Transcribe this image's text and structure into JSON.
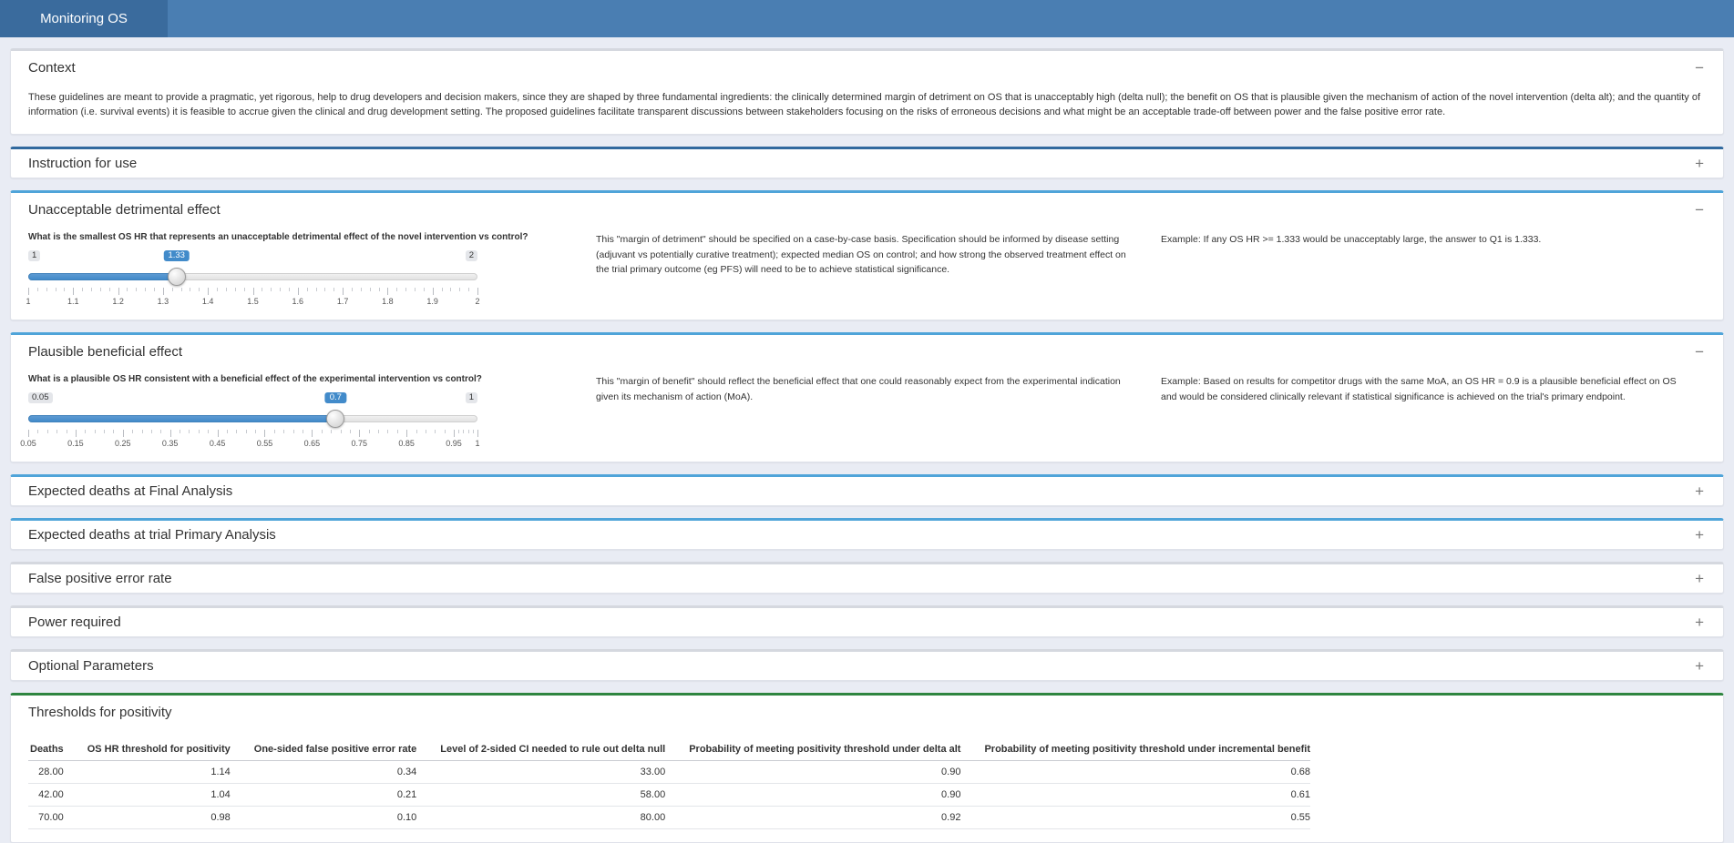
{
  "navbar": {
    "title": "Monitoring OS"
  },
  "colors": {
    "accent_blue": "#428bca",
    "navbar_bg": "#4a7eb2",
    "navbar_active_bg": "#3a6b9d",
    "page_bg": "#e9ecf4",
    "border_gray": "#d5d8df",
    "border_blue_dark": "#31699e",
    "border_blue_light": "#4fa4d9",
    "border_green": "#2e8540"
  },
  "panels": {
    "context": {
      "title": "Context",
      "toggle": "−",
      "body": "These guidelines are meant to provide a pragmatic, yet rigorous, help to drug developers and decision makers, since they are shaped by three fundamental ingredients: the clinically determined margin of detriment on OS that is unacceptably high (delta null); the benefit on OS that is plausible given the mechanism of action of the novel intervention (delta alt); and the quantity of information (i.e. survival events) it is feasible to accrue given the clinical and drug development setting. The proposed guidelines facilitate transparent discussions between stakeholders focusing on the risks of erroneous decisions and what might be an acceptable trade-off between power and the false positive error rate."
    },
    "instruction": {
      "title": "Instruction for use",
      "toggle": "+"
    },
    "detrimental": {
      "title": "Unacceptable detrimental effect",
      "toggle": "−",
      "question": "What is the smallest OS HR that represents an unacceptable detrimental effect of the novel intervention vs control?",
      "slider": {
        "min": 1,
        "max": 2,
        "value": 1.33,
        "min_label": "1",
        "max_label": "2",
        "value_label": "1.33",
        "ticks": [
          "1",
          "1.1",
          "1.2",
          "1.3",
          "1.4",
          "1.5",
          "1.6",
          "1.7",
          "1.8",
          "1.9",
          "2"
        ]
      },
      "note": "This \"margin of detriment\" should be specified on a case-by-case basis. Specification should be informed by disease setting (adjuvant vs potentially curative treatment); expected median OS on control; and how strong the observed treatment effect on the trial primary outcome (eg PFS) will need to be to achieve statistical significance.",
      "example": "Example: If any OS HR >= 1.333 would be unacceptably large, the answer to Q1 is 1.333."
    },
    "beneficial": {
      "title": "Plausible beneficial effect",
      "toggle": "−",
      "question": "What is a plausible OS HR consistent with a beneficial effect of the experimental intervention vs control?",
      "slider": {
        "min": 0.05,
        "max": 1,
        "value": 0.7,
        "min_label": "0.05",
        "max_label": "1",
        "value_label": "0.7",
        "ticks": [
          "0.05",
          "0.15",
          "0.25",
          "0.35",
          "0.45",
          "0.55",
          "0.65",
          "0.75",
          "0.85",
          "0.95",
          "1"
        ]
      },
      "note": "This \"margin of benefit\" should reflect the beneficial effect that one could reasonably expect from the experimental indication given its mechanism of action (MoA).",
      "example": "Example: Based on results for competitor drugs with the same MoA, an OS HR = 0.9 is a plausible beneficial effect on OS and would be considered clinically relevant if statistical significance is achieved on the trial's primary endpoint."
    },
    "deaths_final": {
      "title": "Expected deaths at Final Analysis",
      "toggle": "+"
    },
    "deaths_primary": {
      "title": "Expected deaths at trial Primary Analysis",
      "toggle": "+"
    },
    "false_positive": {
      "title": "False positive error rate",
      "toggle": "+"
    },
    "power": {
      "title": "Power required",
      "toggle": "+"
    },
    "optional": {
      "title": "Optional Parameters",
      "toggle": "+"
    },
    "thresholds": {
      "title": "Thresholds for positivity",
      "table": {
        "headers": [
          "Deaths",
          "OS HR threshold for positivity",
          "One-sided false positive error rate",
          "Level of 2-sided CI needed to rule out delta null",
          "Probability of meeting positivity threshold under delta alt",
          "Probability of meeting positivity threshold under incremental benefit"
        ],
        "rows": [
          [
            "28.00",
            "1.14",
            "0.34",
            "33.00",
            "0.90",
            "0.68"
          ],
          [
            "42.00",
            "1.04",
            "0.21",
            "58.00",
            "0.90",
            "0.61"
          ],
          [
            "70.00",
            "0.98",
            "0.10",
            "80.00",
            "0.92",
            "0.55"
          ]
        ]
      }
    }
  }
}
